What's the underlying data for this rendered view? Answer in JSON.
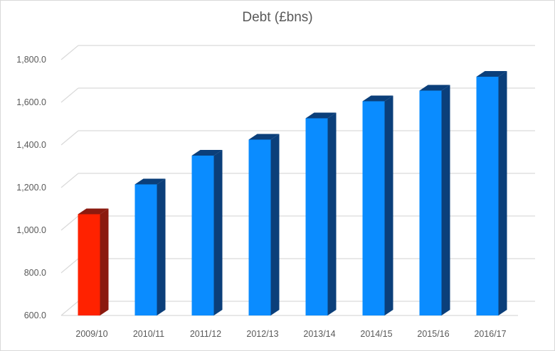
{
  "chart_data": {
    "type": "bar",
    "title": "Debt (£bns)",
    "xlabel": "",
    "ylabel": "",
    "categories": [
      "2009/10",
      "2010/11",
      "2011/12",
      "2012/13",
      "2013/14",
      "2014/15",
      "2015/16",
      "2016/17"
    ],
    "values": [
      1075,
      1215,
      1350,
      1425,
      1525,
      1605,
      1655,
      1720
    ],
    "ylim": [
      600,
      1800
    ],
    "yticks": [
      600,
      800,
      1000,
      1200,
      1400,
      1600,
      1800
    ],
    "ytick_labels": [
      "600.0",
      "800.0",
      "1,000.0",
      "1,200.0",
      "1,400.0",
      "1,600.0",
      "1,800.0"
    ],
    "grid": true,
    "style": "3d-column",
    "colors": {
      "highlight_bar": "#ff2200",
      "highlight_side": "#8b1a0f",
      "bar": "#0a8cff",
      "bar_side": "#0b3f7a",
      "gridline": "#d9d9d9"
    }
  }
}
